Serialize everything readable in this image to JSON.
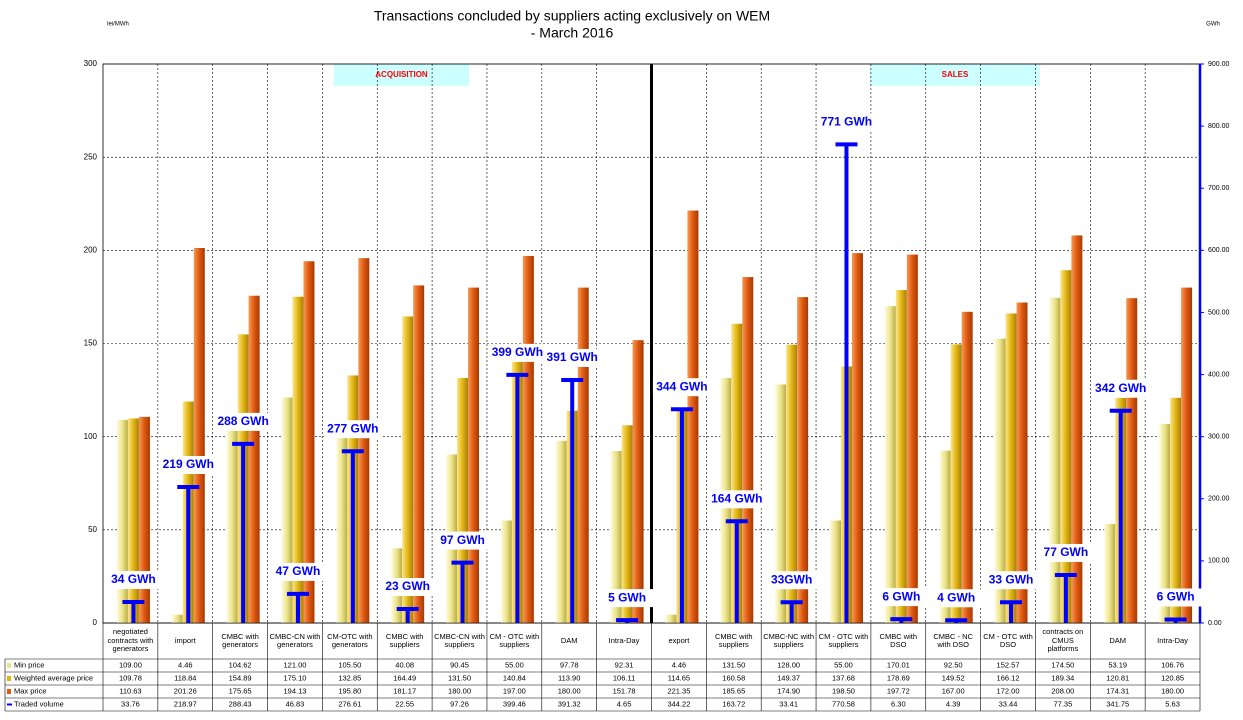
{
  "chart_data": {
    "type": "bar",
    "title": "Transactions concluded by suppliers acting exclusively  on WEM",
    "subtitle": "- March 2016",
    "y_label": "lei/MWh",
    "y2_label": "GWh",
    "annotations": [
      "ACQUISITION",
      "SALES"
    ],
    "categories": [
      "negotiated contracts with generators",
      "import",
      "CMBC with generators",
      "CMBC-CN with generators",
      "CM-OTC with generators",
      "CMBC with suppliers",
      "CMBC-CN with suppliers",
      "CM - OTC with suppliers",
      "DAM",
      "Intra-Day",
      "export",
      "CMBC with suppliers",
      "CMBC-NC with suppliers",
      "CM - OTC with suppliers",
      "CMBC with DSO",
      "CMBC - NC with DSO",
      "CM - OTC with DSO",
      "contracts on CMUS platforms",
      "DAM",
      "Intra-Day"
    ],
    "series": [
      {
        "name": "Min price",
        "color": "#ece48a",
        "values": [
          109.0,
          4.46,
          104.62,
          121.0,
          105.5,
          40.08,
          90.45,
          55.0,
          97.78,
          92.31,
          4.46,
          131.5,
          128.0,
          55.0,
          170.01,
          92.5,
          152.57,
          174.5,
          53.19,
          106.76
        ],
        "table_labels": [
          "109.00",
          "4.46",
          "104.62",
          "121.00",
          "105.50",
          "40.08",
          "90.45",
          "55.00",
          "97.78",
          "92.31",
          "4.46",
          "131.50",
          "128.00",
          "55.00",
          "170.01",
          "92.50",
          "152.57",
          "174.50",
          "53.19",
          "106.76"
        ]
      },
      {
        "name": "Weighted average price",
        "color": "#e3b512",
        "values": [
          109.78,
          118.84,
          154.89,
          175.1,
          132.85,
          164.49,
          131.5,
          140.84,
          113.9,
          106.11,
          114.65,
          160.58,
          149.37,
          137.68,
          178.69,
          149.52,
          166.12,
          189.34,
          120.81,
          120.85
        ],
        "table_labels": [
          "109.78",
          "118.84",
          "154.89",
          "175.10",
          "132.85",
          "164.49",
          "131.50",
          "140.84",
          "113.90",
          "106.11",
          "114.65",
          "160.58",
          "149.37",
          "137.68",
          "178.69",
          "149.52",
          "166.12",
          "189.34",
          "120.81",
          "120.85"
        ]
      },
      {
        "name": "Max price",
        "color": "#e0580f",
        "values": [
          110.63,
          201.26,
          175.65,
          194.13,
          195.8,
          181.17,
          180.0,
          197.0,
          180.0,
          151.78,
          221.35,
          185.65,
          174.9,
          198.5,
          197.72,
          167.0,
          172.0,
          208.0,
          174.31,
          180.0
        ],
        "table_labels": [
          "110.63",
          "201.26",
          "175.65",
          "194.13",
          "195.80",
          "181.17",
          "180.00",
          "197.00",
          "180.00",
          "151.78",
          "221.35",
          "185.65",
          "174.90",
          "198.50",
          "197.72",
          "167.00",
          "172.00",
          "208.00",
          "174.31",
          "180.00"
        ]
      },
      {
        "name": "Traded volume",
        "color": "#0000ff",
        "axis": "y2",
        "values": [
          33.76,
          218.97,
          288.43,
          46.83,
          276.61,
          22.55,
          97.26,
          399.46,
          391.32,
          4.65,
          344.22,
          163.72,
          33.41,
          770.58,
          6.3,
          4.39,
          33.44,
          77.35,
          341.75,
          5.63
        ],
        "value_labels": [
          "34 GWh",
          "219 GWh",
          "288 GWh",
          "47 GWh",
          "277 GWh",
          "23 GWh",
          "97 GWh",
          "399 GWh",
          "391 GWh",
          "5 GWh",
          "344 GWh",
          "164 GWh",
          "33GWh",
          "771 GWh",
          "6 GWh",
          "4 GWh",
          "33 GWh",
          "77 GWh",
          "342 GWh",
          "6 GWh"
        ],
        "table_labels": [
          "33.76",
          "218.97",
          "288.43",
          "46.83",
          "276.61",
          "22.55",
          "97.26",
          "399.46",
          "391.32",
          "4.65",
          "344.22",
          "163.72",
          "33.41",
          "770.58",
          "6.30",
          "4.39",
          "33.44",
          "77.35",
          "341.75",
          "5.63"
        ]
      }
    ],
    "ylim": [
      0,
      300
    ],
    "yticks": [
      0,
      50,
      100,
      150,
      200,
      250,
      300
    ],
    "y2lim": [
      0,
      900
    ],
    "y2ticks": [
      {
        "value": 0,
        "label": "0.00"
      },
      {
        "value": 100,
        "label": "100.00"
      },
      {
        "value": 200,
        "label": "200.00"
      },
      {
        "value": 300,
        "label": "300.00"
      },
      {
        "value": 400,
        "label": "400.00"
      },
      {
        "value": 500,
        "label": "500.00"
      },
      {
        "value": 600,
        "label": "600.00"
      },
      {
        "value": 700,
        "label": "700.00"
      },
      {
        "value": 800,
        "label": "800.00"
      },
      {
        "value": 900,
        "label": "900.00"
      }
    ],
    "grid": true
  }
}
